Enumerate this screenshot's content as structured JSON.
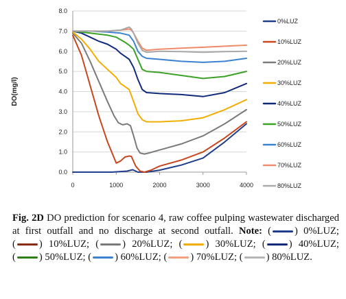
{
  "chart_data": {
    "type": "line",
    "ylabel": "DO(mg/l)",
    "xlabel": "",
    "xlim": [
      0,
      4000
    ],
    "ylim": [
      0.0,
      8.0
    ],
    "x_ticks": [
      "0",
      "1000",
      "2000",
      "3000",
      "4000"
    ],
    "y_ticks": [
      "0.0",
      "1.0",
      "2.0",
      "3.0",
      "4.0",
      "5.0",
      "6.0",
      "7.0",
      "8.0"
    ],
    "grid": "horizontal",
    "legend_position": "right",
    "series": [
      {
        "name": "0%LUZ",
        "color": "#1f3d8a",
        "x": [
          0,
          900,
          1250,
          1380,
          1500,
          1600,
          1700,
          2000,
          2500,
          3000,
          3500,
          4000
        ],
        "y": [
          0.0,
          0.0,
          0.05,
          0.12,
          0.0,
          0.0,
          0.0,
          0.1,
          0.35,
          0.7,
          1.5,
          2.4
        ]
      },
      {
        "name": "10%LUZ",
        "color": "#c8461e",
        "x": [
          0,
          200,
          400,
          600,
          800,
          1000,
          1100,
          1200,
          1300,
          1350,
          1450,
          1550,
          1650,
          1800,
          2000,
          2500,
          3000,
          3500,
          4000
        ],
        "y": [
          6.8,
          5.8,
          4.3,
          2.8,
          1.5,
          0.45,
          0.55,
          0.75,
          0.8,
          0.78,
          0.3,
          0.05,
          0.0,
          0.1,
          0.3,
          0.6,
          1.0,
          1.7,
          2.5
        ]
      },
      {
        "name": "20%LUZ",
        "color": "#7a7a7a",
        "x": [
          0,
          200,
          400,
          600,
          800,
          950,
          1050,
          1150,
          1250,
          1330,
          1400,
          1480,
          1550,
          1650,
          1750,
          2000,
          2500,
          3000,
          3500,
          4000
        ],
        "y": [
          6.9,
          6.4,
          5.5,
          4.5,
          3.5,
          2.8,
          2.45,
          2.35,
          2.4,
          2.3,
          1.8,
          1.2,
          0.95,
          0.9,
          0.95,
          1.1,
          1.4,
          1.8,
          2.4,
          3.1
        ]
      },
      {
        "name": "30%LUZ",
        "color": "#f1ad00",
        "x": [
          0,
          200,
          400,
          600,
          800,
          1000,
          1100,
          1200,
          1300,
          1400,
          1500,
          1600,
          1700,
          2000,
          2500,
          3000,
          3500,
          4000
        ],
        "y": [
          6.95,
          6.6,
          6.1,
          5.5,
          5.1,
          4.7,
          4.4,
          4.25,
          4.1,
          3.5,
          2.9,
          2.6,
          2.5,
          2.5,
          2.55,
          2.7,
          3.1,
          3.6
        ]
      },
      {
        "name": "40%LUZ",
        "color": "#102a7a",
        "x": [
          0,
          200,
          400,
          600,
          800,
          1000,
          1100,
          1200,
          1300,
          1400,
          1500,
          1600,
          1700,
          2000,
          2500,
          3000,
          3500,
          4000
        ],
        "y": [
          7.0,
          6.9,
          6.7,
          6.5,
          6.35,
          6.1,
          5.9,
          5.75,
          5.6,
          5.2,
          4.6,
          4.1,
          3.95,
          3.9,
          3.85,
          3.75,
          3.95,
          4.4
        ]
      },
      {
        "name": "50%LUZ",
        "color": "#3aa224",
        "x": [
          0,
          400,
          800,
          1000,
          1200,
          1300,
          1400,
          1500,
          1600,
          1700,
          2000,
          2500,
          3000,
          3500,
          4000
        ],
        "y": [
          7.0,
          6.9,
          6.8,
          6.7,
          6.45,
          6.3,
          6.1,
          5.6,
          5.1,
          5.0,
          4.95,
          4.8,
          4.65,
          4.75,
          5.0
        ]
      },
      {
        "name": "60%LUZ",
        "color": "#3a82d0",
        "x": [
          0,
          400,
          800,
          1100,
          1300,
          1400,
          1500,
          1600,
          1700,
          2000,
          2500,
          3000,
          3500,
          4000
        ],
        "y": [
          7.0,
          7.0,
          6.95,
          6.9,
          6.8,
          6.5,
          6.0,
          5.75,
          5.65,
          5.6,
          5.5,
          5.45,
          5.5,
          5.65
        ]
      },
      {
        "name": "70%LUZ",
        "color": "#f08a6a",
        "x": [
          0,
          400,
          800,
          1100,
          1300,
          1350,
          1400,
          1500,
          1600,
          1700,
          2000,
          2500,
          3000,
          3500,
          4000
        ],
        "y": [
          7.0,
          7.0,
          7.0,
          7.05,
          7.1,
          7.05,
          6.9,
          6.5,
          6.15,
          6.05,
          6.1,
          6.15,
          6.2,
          6.25,
          6.3
        ]
      },
      {
        "name": "80%LUZ",
        "color": "#a8a8a8",
        "x": [
          0,
          400,
          800,
          1100,
          1300,
          1350,
          1400,
          1500,
          1600,
          1700,
          2000,
          2500,
          3000,
          3500,
          4000
        ],
        "y": [
          7.0,
          7.0,
          7.0,
          7.05,
          7.2,
          7.1,
          6.9,
          6.4,
          6.05,
          5.95,
          6.0,
          5.98,
          5.95,
          5.98,
          6.0
        ]
      }
    ]
  },
  "caption": {
    "label": "Fig. 2D",
    "text": " DO prediction for scenario 4, raw coffee pulping wastewater discharged at first outfall and no discharge at second outfall. ",
    "note_label": "Note:",
    "keys": [
      {
        "label": "0%LUZ;",
        "color": "#1f3d8a"
      },
      {
        "label": "10%LUZ;",
        "color": "#8b2a12"
      },
      {
        "label": "20%LUZ;",
        "color": "#7a7a7a"
      },
      {
        "label": "30%LUZ;",
        "color": "#f1ad00"
      },
      {
        "label": "40%LUZ;",
        "color": "#102a7a"
      },
      {
        "label": "50%LUZ;",
        "color": "#2d7f1a"
      },
      {
        "label": "60%LUZ;",
        "color": "#3a82d0"
      },
      {
        "label": "70%LUZ;",
        "color": "#f3a080"
      },
      {
        "label": "80%LUZ.",
        "color": "#b5b5b5"
      }
    ]
  }
}
